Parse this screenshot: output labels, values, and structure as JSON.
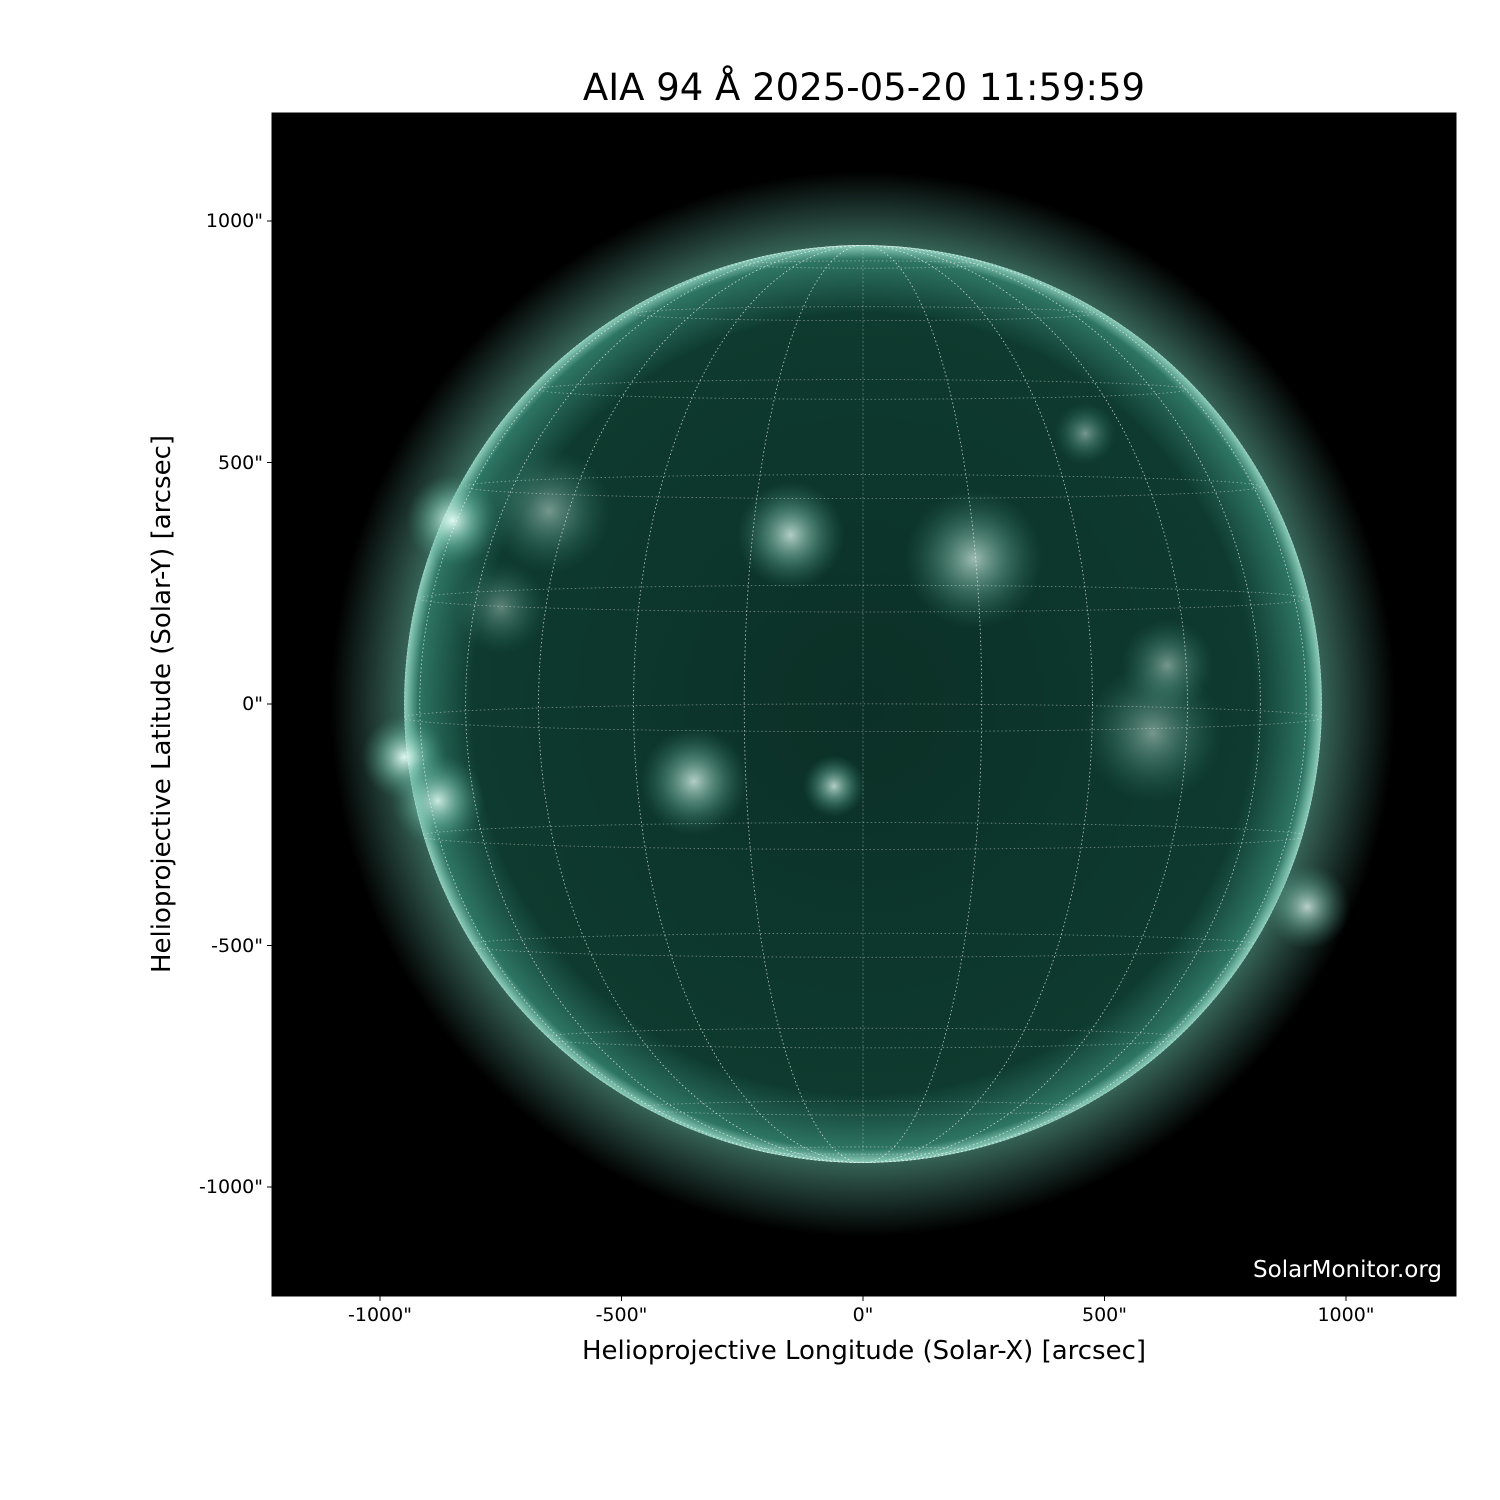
{
  "title": "AIA 94 Å 2025-05-20 11:59:59",
  "xlabel": "Helioprojective Longitude (Solar-X) [arcsec]",
  "ylabel": "Helioprojective Latitude (Solar-Y) [arcsec]",
  "watermark": "SolarMonitor.org",
  "x_ticks": [
    {
      "value": -1000,
      "label": "-1000\""
    },
    {
      "value": -500,
      "label": "-500\""
    },
    {
      "value": 0,
      "label": "0\""
    },
    {
      "value": 500,
      "label": "500\""
    },
    {
      "value": 1000,
      "label": "1000\""
    }
  ],
  "y_ticks": [
    {
      "value": 1000,
      "label": "1000\""
    },
    {
      "value": 500,
      "label": "500\""
    },
    {
      "value": 0,
      "label": "0\""
    },
    {
      "value": -500,
      "label": "-500\""
    },
    {
      "value": -1000,
      "label": "-1000\""
    }
  ],
  "axis_range_arcsec": [
    -1228,
    1228
  ],
  "solar_radius_arcsec": 950,
  "grid_spacing_deg": 15,
  "colors": {
    "background": "#000000",
    "disk": "#0e3a2f",
    "limb": "#5fae98",
    "bright": "#e8fff8",
    "grid": "#ffffff"
  }
}
